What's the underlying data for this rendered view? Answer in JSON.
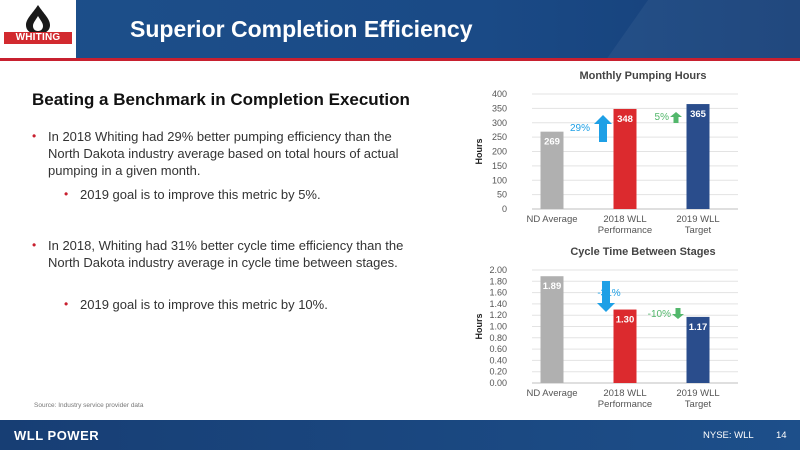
{
  "header": {
    "logo_text": "WHITING",
    "title": "Superior Completion Efficiency"
  },
  "content": {
    "subtitle": "Beating a Benchmark in Completion Execution",
    "bullets": [
      "In 2018 Whiting had 29% better pumping efficiency than the North Dakota industry average based on total hours of actual pumping in a given month.",
      "2019 goal is to improve this metric by 5%.",
      "In 2018, Whiting had 31% better cycle time efficiency than the North Dakota industry average in cycle time between stages.",
      "2019 goal is to improve this metric by 10%."
    ],
    "source": "Source: Industry service provider data"
  },
  "footer": {
    "brand": "WLL POWER",
    "ticker": "NYSE: WLL",
    "page": "14"
  },
  "colors": {
    "brand_blue": "#1d4f8a",
    "red": "#c8202f",
    "bar_gray": "#b0b0b0",
    "bar_red": "#dc2a2e",
    "bar_blue": "#2a4d8c",
    "arrow_blue": "#1ea0e6",
    "arrow_green": "#52b76b"
  },
  "icons": [
    "whiting-drop-logo-icon",
    "up-arrow-icon",
    "down-arrow-icon"
  ],
  "chart_data": [
    {
      "type": "bar",
      "title": "Monthly Pumping Hours",
      "ylabel": "Hours",
      "categories": [
        [
          "ND Average"
        ],
        [
          "2018 WLL",
          "Performance"
        ],
        [
          "2019 WLL",
          "Target"
        ]
      ],
      "values": [
        269,
        348,
        365
      ],
      "value_labels": [
        "269",
        "348",
        "365"
      ],
      "ylim": [
        0,
        400
      ],
      "yticks": [
        "0",
        "50",
        "100",
        "150",
        "200",
        "250",
        "300",
        "350",
        "400"
      ],
      "grid": true,
      "annotations": [
        {
          "text": "29%",
          "arrow": "up",
          "color": "#1ea0e6"
        },
        {
          "text": "5%",
          "arrow": "up",
          "color": "#52b76b"
        }
      ]
    },
    {
      "type": "bar",
      "title": "Cycle Time Between Stages",
      "ylabel": "Hours",
      "categories": [
        [
          "ND Average"
        ],
        [
          "2018 WLL",
          "Performance"
        ],
        [
          "2019 WLL",
          "Target"
        ]
      ],
      "values": [
        1.89,
        1.3,
        1.17
      ],
      "value_labels": [
        "1.89",
        "1.30",
        "1.17"
      ],
      "ylim": [
        0,
        2.0
      ],
      "yticks": [
        "0.00",
        "0.20",
        "0.40",
        "0.60",
        "0.80",
        "1.00",
        "1.20",
        "1.40",
        "1.60",
        "1.80",
        "2.00"
      ],
      "grid": true,
      "annotations": [
        {
          "text": "-31%",
          "arrow": "down",
          "color": "#1ea0e6"
        },
        {
          "text": "-10%",
          "arrow": "down",
          "color": "#52b76b"
        }
      ]
    }
  ]
}
